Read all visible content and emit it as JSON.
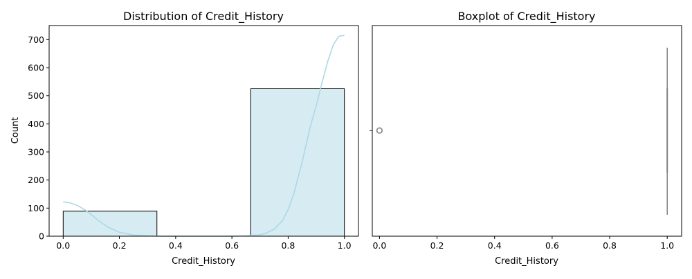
{
  "chart_data": [
    {
      "type": "bar",
      "title": "Distribution of Credit_History",
      "xlabel": "Credit_History",
      "ylabel": "Count",
      "xlim": [
        -0.05,
        1.05
      ],
      "ylim": [
        0,
        750
      ],
      "xticks": [
        "0.0",
        "0.2",
        "0.4",
        "0.6",
        "0.8",
        "1.0"
      ],
      "yticks": [
        "0",
        "100",
        "200",
        "300",
        "400",
        "500",
        "600",
        "700"
      ],
      "bins": [
        {
          "x0": 0.0,
          "x1": 0.3333,
          "count": 89
        },
        {
          "x0": 0.3333,
          "x1": 0.6667,
          "count": 0
        },
        {
          "x0": 0.6667,
          "x1": 1.0,
          "count": 525
        }
      ],
      "kde": {
        "x": [
          0.0,
          0.02,
          0.05,
          0.08,
          0.1,
          0.13,
          0.16,
          0.2,
          0.25,
          0.3,
          0.35,
          0.4,
          0.5,
          0.6,
          0.65,
          0.7,
          0.72,
          0.75,
          0.78,
          0.8,
          0.82,
          0.85,
          0.88,
          0.9,
          0.92,
          0.94,
          0.96,
          0.98,
          1.0
        ],
        "y": [
          122,
          120,
          110,
          92,
          77,
          52,
          32,
          14,
          4,
          1,
          0,
          0,
          0,
          0,
          1,
          5,
          10,
          25,
          55,
          95,
          150,
          265,
          395,
          465,
          545,
          620,
          680,
          712,
          715
        ]
      },
      "colors": {
        "bar_fill": "#add8e6",
        "bar_edge": "#000000",
        "kde_line": "#add8e6"
      }
    },
    {
      "type": "box",
      "title": "Boxplot of Credit_History",
      "xlabel": "Credit_History",
      "xlim": [
        -0.025,
        1.05
      ],
      "xticks": [
        "0.0",
        "0.2",
        "0.4",
        "0.6",
        "0.8",
        "1.0"
      ],
      "box": {
        "q1": 1.0,
        "median": 1.0,
        "q3": 1.0,
        "whisker_low": 1.0,
        "whisker_high": 1.0
      },
      "outliers": [
        0.0
      ],
      "colors": {
        "box": "#808080",
        "outlier_edge": "#808080"
      }
    }
  ]
}
